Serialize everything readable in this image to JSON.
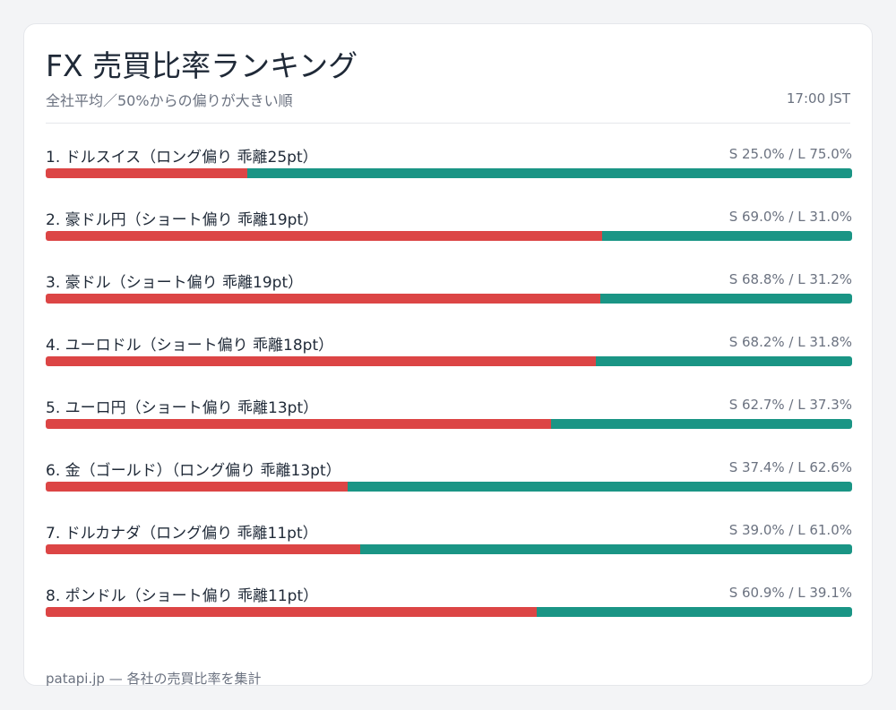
{
  "header": {
    "title": "FX 売買比率ランキング",
    "subtitle": "全社平均／50%からの偏りが大きい順",
    "time": "17:00 JST"
  },
  "footer": {
    "text": "patapi.jp — 各社の売買比率を集計"
  },
  "colors": {
    "short": "#dc4545",
    "long": "#1a9585"
  },
  "chart_data": {
    "type": "bar",
    "orientation": "horizontal-stacked",
    "categories": [
      "1. ドルスイス（ロング偏り 乖離25pt）",
      "2. 豪ドル円（ショート偏り 乖離19pt）",
      "3. 豪ドル（ショート偏り 乖離19pt）",
      "4. ユーロドル（ショート偏り 乖離18pt）",
      "5. ユーロ円（ショート偏り 乖離13pt）",
      "6. 金（ゴールド）（ロング偏り 乖離13pt）",
      "7. ドルカナダ（ロング偏り 乖離11pt）",
      "8. ポンドル（ショート偏り 乖離11pt）"
    ],
    "value_labels": [
      "S 25.0% / L 75.0%",
      "S 69.0% / L 31.0%",
      "S 68.8% / L 31.2%",
      "S 68.2% / L 31.8%",
      "S 62.7% / L 37.3%",
      "S 37.4% / L 62.6%",
      "S 39.0% / L 61.0%",
      "S 60.9% / L 39.1%"
    ],
    "series": [
      {
        "values": [
          25.0,
          69.0,
          68.8,
          68.2,
          62.7,
          37.4,
          39.0,
          60.9
        ]
      },
      {
        "values": [
          75.0,
          31.0,
          31.2,
          31.8,
          37.3,
          62.6,
          61.0,
          39.1
        ]
      }
    ],
    "xlim": [
      0,
      100
    ]
  }
}
